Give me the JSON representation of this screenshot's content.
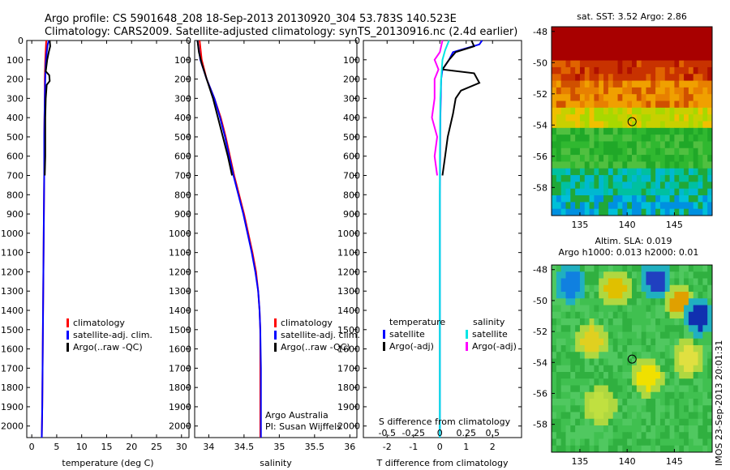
{
  "header": {
    "line1": "Argo profile: CS 5901648_208 18-Sep-2013 20130920_304 53.783S 140.523E",
    "line2": "Climatology: CARS2009. Satellite-adjusted climatology: synTS_20130916.nc (2.4d earlier)"
  },
  "side_label": "IMOS 23-Sep-2013 20:01:31",
  "colors": {
    "climatology": "#ff0000",
    "satellite": "#0000ff",
    "argo": "#000000",
    "sal_satellite": "#00e5e5",
    "sal_argo": "#ff00ff"
  },
  "panels": {
    "temperature": {
      "xlabel": "temperature (deg C)",
      "legend": [
        "climatology",
        "satellite-adj. clim.",
        "Argo(..raw -QC)"
      ]
    },
    "salinity": {
      "xlabel": "salinity",
      "legend": [
        "climatology",
        "satellite-adj. clim.",
        "Argo(..raw -QC)"
      ],
      "note1": "Argo Australia",
      "note2": "PI: Susan Wijffels"
    },
    "difference": {
      "xlabel": "T difference from climatology",
      "top_label": "S difference from climatology",
      "legend_left_title": "temperature",
      "legend_left": [
        "satellite",
        "Argo(-adj)"
      ],
      "legend_right_title": "salinity",
      "legend_right": [
        "satellite",
        "Argo(-adj)"
      ]
    },
    "sst_map": {
      "title": "sat. SST: 3.52 Argo: 2.86"
    },
    "sla_map": {
      "title1": "Altim. SLA: 0.019",
      "title2": "Argo h1000: 0.013 h2000: 0.01"
    }
  },
  "chart_data": [
    {
      "type": "line",
      "name": "temperature",
      "x_ticks": [
        "0",
        "5",
        "10",
        "15",
        "20",
        "25",
        "30"
      ],
      "y_ticks": [
        "0",
        "100",
        "200",
        "300",
        "400",
        "500",
        "600",
        "700",
        "800",
        "900",
        "1000",
        "1100",
        "1200",
        "1300",
        "1400",
        "1500",
        "1600",
        "1700",
        "1800",
        "1900",
        "2000"
      ],
      "xlim": [
        -1,
        31.5
      ],
      "ylim": [
        2060,
        0
      ],
      "series": [
        {
          "name": "climatology",
          "color": "#ff0000",
          "points": [
            [
              2.9,
              0
            ],
            [
              2.8,
              50
            ],
            [
              2.7,
              100
            ],
            [
              2.6,
              200
            ],
            [
              2.6,
              300
            ],
            [
              2.5,
              500
            ],
            [
              2.5,
              700
            ],
            [
              2.4,
              1000
            ],
            [
              2.3,
              1300
            ],
            [
              2.2,
              1600
            ],
            [
              2.1,
              1900
            ],
            [
              2.0,
              2060
            ]
          ]
        },
        {
          "name": "satellite-adj. clim.",
          "color": "#0000ff",
          "points": [
            [
              3.4,
              0
            ],
            [
              3.2,
              20
            ],
            [
              3.0,
              60
            ],
            [
              2.8,
              120
            ],
            [
              2.7,
              200
            ],
            [
              2.6,
              300
            ],
            [
              2.5,
              500
            ],
            [
              2.5,
              700
            ],
            [
              2.4,
              1000
            ],
            [
              2.3,
              1300
            ],
            [
              2.2,
              1600
            ],
            [
              2.1,
              1900
            ],
            [
              2.0,
              2060
            ]
          ]
        },
        {
          "name": "Argo(..raw -QC)",
          "color": "#000000",
          "points": [
            [
              3.6,
              0
            ],
            [
              3.7,
              30
            ],
            [
              3.4,
              60
            ],
            [
              3.1,
              100
            ],
            [
              2.8,
              160
            ],
            [
              3.5,
              180
            ],
            [
              3.6,
              210
            ],
            [
              3.0,
              230
            ],
            [
              2.8,
              300
            ],
            [
              2.7,
              400
            ],
            [
              2.7,
              600
            ],
            [
              2.6,
              700
            ]
          ]
        }
      ]
    },
    {
      "type": "line",
      "name": "salinity",
      "x_ticks": [
        "34",
        "34.5",
        "35",
        "35.5",
        "36"
      ],
      "y_ticks": [
        "0",
        "100",
        "200",
        "300",
        "400",
        "500",
        "600",
        "700",
        "800",
        "900",
        "1000",
        "1100",
        "1200",
        "1300",
        "1400",
        "1500",
        "1600",
        "1700",
        "1800",
        "1900",
        "2000"
      ],
      "xlim": [
        33.8,
        36.1
      ],
      "ylim": [
        2060,
        0
      ],
      "series": [
        {
          "name": "climatology",
          "color": "#ff0000",
          "points": [
            [
              33.87,
              0
            ],
            [
              33.9,
              100
            ],
            [
              33.97,
              200
            ],
            [
              34.08,
              300
            ],
            [
              34.17,
              400
            ],
            [
              34.24,
              500
            ],
            [
              34.3,
              600
            ],
            [
              34.36,
              700
            ],
            [
              34.43,
              800
            ],
            [
              34.5,
              900
            ],
            [
              34.56,
              1000
            ],
            [
              34.62,
              1100
            ],
            [
              34.67,
              1200
            ],
            [
              34.7,
              1300
            ],
            [
              34.72,
              1400
            ],
            [
              34.73,
              1500
            ],
            [
              34.73,
              1700
            ],
            [
              34.73,
              2060
            ]
          ]
        },
        {
          "name": "satellite-adj. clim.",
          "color": "#0000ff",
          "points": [
            [
              33.84,
              0
            ],
            [
              33.88,
              100
            ],
            [
              33.97,
              200
            ],
            [
              34.08,
              300
            ],
            [
              34.16,
              400
            ],
            [
              34.23,
              500
            ],
            [
              34.29,
              600
            ],
            [
              34.35,
              700
            ],
            [
              34.42,
              800
            ],
            [
              34.49,
              900
            ],
            [
              34.55,
              1000
            ],
            [
              34.61,
              1100
            ],
            [
              34.66,
              1200
            ],
            [
              34.7,
              1300
            ],
            [
              34.72,
              1400
            ],
            [
              34.73,
              1500
            ],
            [
              34.74,
              1700
            ],
            [
              34.74,
              2060
            ]
          ]
        },
        {
          "name": "Argo(..raw -QC)",
          "color": "#000000",
          "points": [
            [
              33.84,
              0
            ],
            [
              33.86,
              60
            ],
            [
              33.9,
              120
            ],
            [
              33.97,
              200
            ],
            [
              34.06,
              300
            ],
            [
              34.13,
              400
            ],
            [
              34.2,
              500
            ],
            [
              34.27,
              600
            ],
            [
              34.33,
              700
            ]
          ]
        }
      ]
    },
    {
      "type": "line",
      "name": "difference",
      "x_ticks": [
        "-2",
        "-1",
        "0",
        "1",
        "2"
      ],
      "top_ticks": [
        "-0.5",
        "-0.25",
        "0",
        "0.25",
        "0.5"
      ],
      "y_ticks": [
        "0",
        "100",
        "200",
        "300",
        "400",
        "500",
        "600",
        "700",
        "800",
        "900",
        "1000",
        "1100",
        "1200",
        "1300",
        "1400",
        "1500",
        "1600",
        "1700",
        "1800",
        "1900",
        "2000"
      ],
      "xlim": [
        -2.9,
        3.1
      ],
      "ylim": [
        2060,
        0
      ],
      "series": [
        {
          "name": "temperature satellite",
          "color": "#0000ff",
          "points": [
            [
              1.6,
              0
            ],
            [
              1.5,
              20
            ],
            [
              0.5,
              60
            ],
            [
              0.35,
              100
            ],
            [
              0.1,
              150
            ],
            [
              0.05,
              200
            ],
            [
              0.02,
              400
            ],
            [
              0.0,
              800
            ],
            [
              0.0,
              1200
            ],
            [
              0.0,
              1600
            ],
            [
              0.0,
              2060
            ]
          ]
        },
        {
          "name": "temperature Argo(-adj)",
          "color": "#000000",
          "points": [
            [
              1.2,
              0
            ],
            [
              1.3,
              30
            ],
            [
              0.6,
              60
            ],
            [
              0.35,
              100
            ],
            [
              0.1,
              150
            ],
            [
              1.3,
              170
            ],
            [
              1.5,
              220
            ],
            [
              0.8,
              260
            ],
            [
              0.6,
              300
            ],
            [
              0.5,
              380
            ],
            [
              0.3,
              500
            ],
            [
              0.2,
              600
            ],
            [
              0.1,
              700
            ]
          ]
        },
        {
          "name": "salinity satellite",
          "color": "#00e5e5",
          "points": [
            [
              0.35,
              0
            ],
            [
              0.2,
              50
            ],
            [
              0.1,
              100
            ],
            [
              0.05,
              200
            ],
            [
              0.02,
              300
            ],
            [
              0.0,
              600
            ],
            [
              0.0,
              1000
            ],
            [
              0.0,
              1500
            ],
            [
              0.0,
              2060
            ]
          ]
        },
        {
          "name": "salinity Argo(-adj)",
          "color": "#ff00ff",
          "points": [
            [
              0.1,
              0
            ],
            [
              0.0,
              60
            ],
            [
              -0.2,
              100
            ],
            [
              -0.05,
              150
            ],
            [
              -0.2,
              200
            ],
            [
              -0.2,
              300
            ],
            [
              -0.3,
              400
            ],
            [
              -0.1,
              500
            ],
            [
              -0.2,
              600
            ],
            [
              -0.1,
              700
            ]
          ]
        }
      ]
    },
    {
      "type": "heatmap",
      "name": "sst_map",
      "x_ticks": [
        "135",
        "140",
        "145"
      ],
      "y_ticks": [
        "-48",
        "-50",
        "-52",
        "-54",
        "-56",
        "-58"
      ],
      "xlim": [
        132,
        149
      ],
      "ylim": [
        -59.8,
        -47.7
      ],
      "argo_position": [
        140.523,
        -53.783
      ]
    },
    {
      "type": "heatmap",
      "name": "sla_map",
      "x_ticks": [
        "135",
        "140",
        "145"
      ],
      "y_ticks": [
        "-48",
        "-50",
        "-52",
        "-54",
        "-56",
        "-58"
      ],
      "xlim": [
        132,
        149
      ],
      "ylim": [
        -59.8,
        -47.7
      ],
      "argo_position": [
        140.523,
        -53.783
      ]
    }
  ]
}
